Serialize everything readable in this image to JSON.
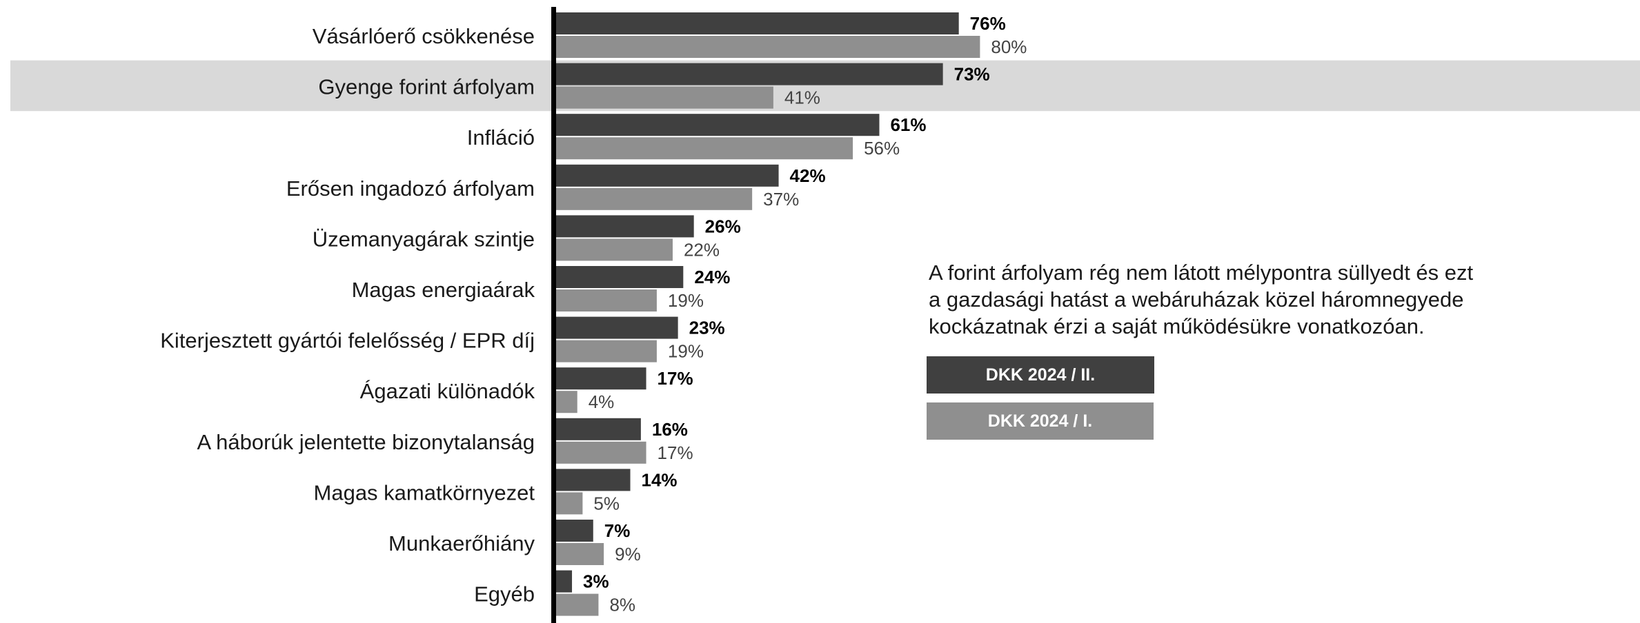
{
  "chart_data": {
    "type": "bar",
    "orientation": "horizontal",
    "categories": [
      "Vásárlóerő csökkenése",
      "Gyenge forint árfolyam",
      "Infláció",
      "Erősen ingadozó árfolyam",
      "Üzemanyagárak szintje",
      "Magas energiaárak",
      "Kiterjesztett gyártói felelősség / EPR díj",
      "Ágazati különadók",
      "A háborúk jelentette bizonytalanság",
      "Magas kamatkörnyezet",
      "Munkaerőhiány",
      "Egyéb"
    ],
    "series": [
      {
        "name": "DKK 2024 / II.",
        "values": [
          76,
          73,
          61,
          42,
          26,
          24,
          23,
          17,
          16,
          14,
          7,
          3
        ],
        "labels": [
          "76%",
          "73%",
          "61%",
          "42%",
          "26%",
          "24%",
          "23%",
          "17%",
          "16%",
          "14%",
          "7%",
          "3%"
        ],
        "color": "#404040"
      },
      {
        "name": "DKK 2024 / I.",
        "values": [
          80,
          41,
          56,
          37,
          22,
          19,
          19,
          4,
          17,
          5,
          9,
          8
        ],
        "labels": [
          "80%",
          "41%",
          "56%",
          "37%",
          "22%",
          "19%",
          "19%",
          "4%",
          "17%",
          "5%",
          "9%",
          "8%"
        ],
        "color": "#8f8f8f"
      }
    ],
    "highlighted_category": "Gyenge forint árfolyam",
    "highlight_color": "#d9d9d9",
    "axis_color": "#000000",
    "xlim": [
      0,
      100
    ],
    "legend_position": "right-middle"
  },
  "annotation": {
    "lines": [
      "A forint árfolyam rég nem látott mélypontra süllyedt és ezt",
      "a gazdasági hatást a webáruházak közel háromnegyede",
      "kockázatnak érzi a saját működésükre vonatkozóan."
    ]
  },
  "legend": {
    "items": [
      {
        "label": "DKK 2024 / II.",
        "color": "#404040"
      },
      {
        "label": "DKK 2024 / I.",
        "color": "#8f8f8f"
      }
    ]
  }
}
